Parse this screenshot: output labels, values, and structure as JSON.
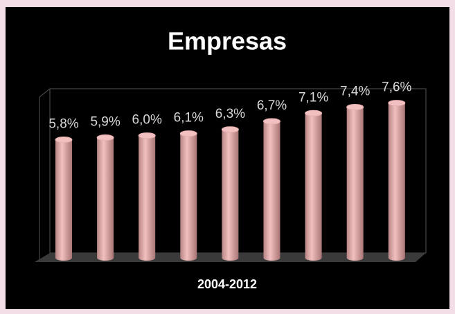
{
  "chart_data": {
    "type": "bar",
    "title": "Empresas",
    "x_label": "2004-2012",
    "categories": [
      null,
      null,
      null,
      null,
      null,
      null,
      null,
      null,
      null
    ],
    "values": [
      5.8,
      5.9,
      6.0,
      6.1,
      6.3,
      6.7,
      7.1,
      7.4,
      7.6
    ],
    "value_labels": [
      "5,8%",
      "5,9%",
      "6,0%",
      "6,1%",
      "6,3%",
      "6,7%",
      "7,1%",
      "7,4%",
      "7,6%"
    ],
    "color": "#f2c0c0",
    "ylim": [
      0,
      8.3
    ]
  }
}
